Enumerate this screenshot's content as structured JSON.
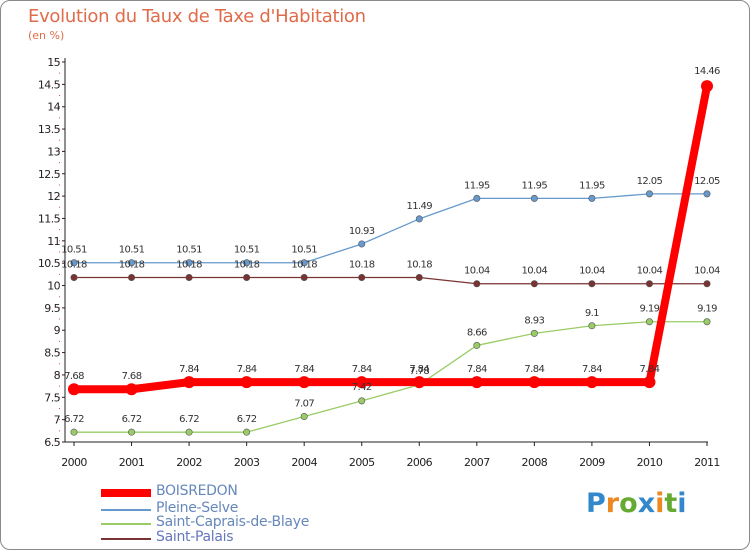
{
  "chart_data": {
    "type": "line",
    "title": "Evolution du Taux de Taxe d'Habitation",
    "subtitle": "(en %)",
    "x": [
      "2000",
      "2001",
      "2002",
      "2003",
      "2004",
      "2005",
      "2006",
      "2007",
      "2008",
      "2009",
      "2010",
      "2011"
    ],
    "ylim": [
      6.5,
      15
    ],
    "yticks": [
      "6.5",
      "7",
      "7.5",
      "8",
      "8.5",
      "9",
      "9.5",
      "10",
      "10.5",
      "11",
      "11.5",
      "12",
      "12.5",
      "13",
      "13.5",
      "14",
      "14.5",
      "15"
    ],
    "grid": false,
    "legend_position": "bottom-left",
    "series": [
      {
        "name": "BOISREDON",
        "color": "#ff0000",
        "values": [
          7.68,
          7.68,
          7.84,
          7.84,
          7.84,
          7.84,
          7.84,
          7.84,
          7.84,
          7.84,
          7.84,
          14.46
        ],
        "labels": [
          "7.68",
          "7.68",
          "7.84",
          "7.84",
          "7.84",
          "7.84",
          "7.84",
          "7.84",
          "7.84",
          "7.84",
          "7.84",
          "14.46"
        ]
      },
      {
        "name": "Pleine-Selve",
        "color": "#6699cc",
        "values": [
          10.51,
          10.51,
          10.51,
          10.51,
          10.51,
          10.93,
          11.49,
          11.95,
          11.95,
          11.95,
          12.05,
          12.05
        ],
        "labels": [
          "10.51",
          "10.51",
          "10.51",
          "10.51",
          "10.51",
          "10.93",
          "11.49",
          "11.95",
          "11.95",
          "11.95",
          "12.05",
          "12.05"
        ]
      },
      {
        "name": "Saint-Caprais-de-Blaye",
        "color": "#99cc66",
        "values": [
          6.72,
          6.72,
          6.72,
          6.72,
          7.07,
          7.42,
          7.78,
          8.66,
          8.93,
          9.1,
          9.19,
          9.19
        ],
        "labels": [
          "6.72",
          "6.72",
          "6.72",
          "6.72",
          "7.07",
          "7.42",
          "7.78",
          "8.66",
          "8.93",
          "9.1",
          "9.19",
          "9.19"
        ]
      },
      {
        "name": "Saint-Palais",
        "color": "#7a3333",
        "values": [
          10.18,
          10.18,
          10.18,
          10.18,
          10.18,
          10.18,
          10.18,
          10.04,
          10.04,
          10.04,
          10.04,
          10.04
        ],
        "labels": [
          "10.18",
          "10.18",
          "10.18",
          "10.18",
          "10.18",
          "10.18",
          "10.18",
          "10.04",
          "10.04",
          "10.04",
          "10.04",
          "10.04"
        ]
      }
    ]
  },
  "logo": {
    "letters": [
      "P",
      "r",
      "o",
      "x",
      "i",
      "t",
      "i"
    ],
    "colors": [
      "#3388cc",
      "#ee8822",
      "#66aa33",
      "#3388cc",
      "#ee8822",
      "#66aa33",
      "#3388cc"
    ]
  }
}
